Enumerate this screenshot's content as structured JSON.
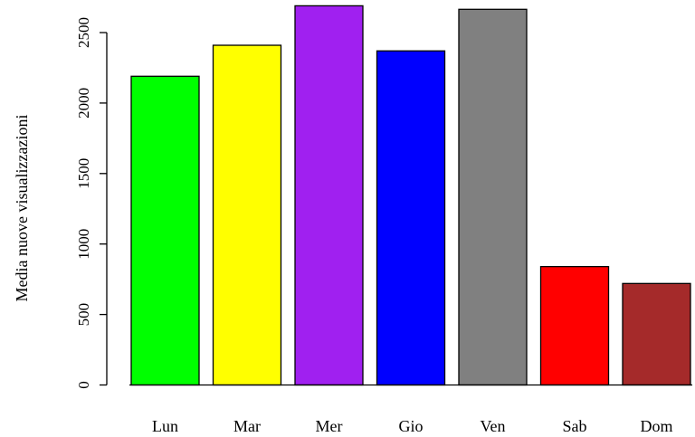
{
  "chart_data": {
    "type": "bar",
    "categories": [
      "Lun",
      "Mar",
      "Mer",
      "Gio",
      "Ven",
      "Sab",
      "Dom"
    ],
    "values": [
      2190,
      2410,
      2690,
      2370,
      2665,
      840,
      720
    ],
    "colors": [
      "#00ff00",
      "#ffff00",
      "#a020f0",
      "#0000ff",
      "#808080",
      "#ff0000",
      "#a52a2a"
    ],
    "title": "",
    "xlabel": "",
    "ylabel": "Media nuove visualizzazioni",
    "yticks": [
      0,
      500,
      1000,
      1500,
      2000,
      2500
    ],
    "ylim": [
      0,
      2700
    ],
    "grid": false,
    "bar_border_color": "#000000"
  }
}
